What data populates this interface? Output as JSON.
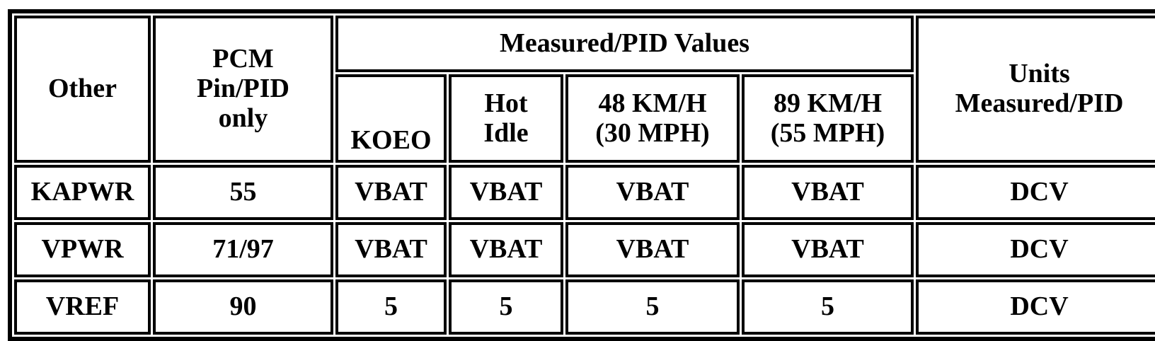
{
  "table": {
    "header": {
      "other": "Other",
      "pcm": "PCM\nPin/PID\nonly",
      "group": "Measured/PID Values",
      "units": "Units\nMeasured/PID",
      "sub": [
        "KOEO",
        "Hot\nIdle",
        "48 KM/H\n(30 MPH)",
        "89 KM/H\n(55 MPH)"
      ]
    },
    "rows": [
      [
        "KAPWR",
        "55",
        "VBAT",
        "VBAT",
        "VBAT",
        "VBAT",
        "DCV"
      ],
      [
        "VPWR",
        "71/97",
        "VBAT",
        "VBAT",
        "VBAT",
        "VBAT",
        "DCV"
      ],
      [
        "VREF",
        "90",
        "5",
        "5",
        "5",
        "5",
        "DCV"
      ]
    ]
  }
}
